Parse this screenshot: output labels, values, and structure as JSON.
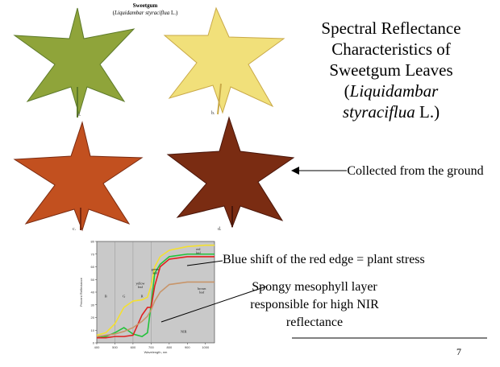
{
  "figure_title": {
    "main": "Sweetgum",
    "latin": "Liquidambar styraciflua",
    "author": "L."
  },
  "leaves": [
    {
      "caption": "a.",
      "fill": "#8fa43a",
      "stroke": "#5d7a2a"
    },
    {
      "caption": "b.",
      "fill": "#f1e07a",
      "stroke": "#c9a948"
    },
    {
      "caption": "c.",
      "fill": "#c2501f",
      "stroke": "#7a2a10"
    },
    {
      "caption": "d.",
      "fill": "#7a2c12",
      "stroke": "#4a160a"
    }
  ],
  "slide_title": {
    "line1": "Spectral Reflectance",
    "line2": "Characteristics of",
    "line3": "Sweetgum Leaves",
    "open_paren": "(",
    "latin": "Liquidambar",
    "latin2": "styraciflua",
    "author_close": " L.)"
  },
  "collected_note": "Collected from the ground",
  "blue_shift_note": "Blue shift of the red edge = plant stress",
  "spongy_note": "Spongy mesophyll layer responsible for high NIR reflectance",
  "page_number": "7",
  "chart_data": {
    "type": "line",
    "xlabel": "Wavelength, nm",
    "ylabel": "Percent Reflectance",
    "xlim": [
      400,
      1050
    ],
    "ylim": [
      0,
      80
    ],
    "x_ticks": [
      "400",
      "500",
      "600",
      "700",
      "800",
      "900",
      "1000"
    ],
    "y_ticks": [
      "0",
      "10",
      "20",
      "30",
      "40",
      "50",
      "60",
      "70",
      "80"
    ],
    "region_labels": [
      "B",
      "G",
      "R",
      "NIR"
    ],
    "x": [
      400,
      450,
      500,
      550,
      600,
      650,
      680,
      700,
      720,
      750,
      800,
      900,
      1000,
      1050
    ],
    "series": [
      {
        "name": "green leaf",
        "color": "#22c23a",
        "values": [
          4,
          5,
          8,
          12,
          7,
          5,
          8,
          30,
          55,
          62,
          68,
          70,
          70,
          70
        ]
      },
      {
        "name": "yellow leaf",
        "color": "#f4e030",
        "values": [
          6,
          8,
          15,
          28,
          33,
          34,
          36,
          45,
          60,
          68,
          73,
          76,
          77,
          77
        ]
      },
      {
        "name": "red leaf",
        "color": "#e02020",
        "values": [
          4,
          4,
          5,
          5,
          6,
          22,
          28,
          28,
          45,
          60,
          66,
          68,
          68,
          68
        ]
      },
      {
        "name": "brown leaf",
        "color": "#c8956a",
        "values": [
          5,
          6,
          7,
          9,
          12,
          17,
          21,
          26,
          33,
          40,
          46,
          48,
          48,
          48
        ]
      }
    ],
    "colors": {
      "plot_bg": "#c9c9c9",
      "axis": "#333333"
    }
  }
}
